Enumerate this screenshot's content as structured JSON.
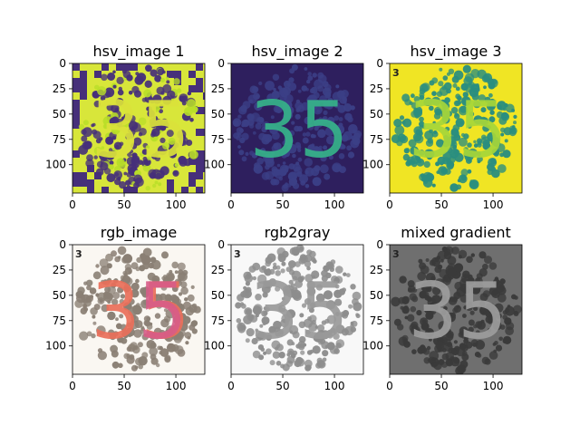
{
  "figure": {
    "rows": 2,
    "cols": 3
  },
  "chart_data": [
    {
      "type": "heatmap",
      "title": "hsv_image 1",
      "colormap": "viridis",
      "xlim": [
        0,
        128
      ],
      "ylim": [
        128,
        0
      ],
      "xticks": [
        0,
        50,
        100
      ],
      "yticks": [
        0,
        25,
        50,
        75,
        100
      ],
      "image": {
        "background": "#d8e63a",
        "dots": "#462f7a",
        "glyph": "35",
        "glyph_color": "#dbe23a",
        "checker_border": true,
        "highlight_dots": "#b9de28"
      }
    },
    {
      "type": "heatmap",
      "title": "hsv_image 2",
      "colormap": "viridis",
      "xlim": [
        0,
        128
      ],
      "ylim": [
        128,
        0
      ],
      "xticks": [
        0,
        50,
        100
      ],
      "yticks": [
        0,
        25,
        50,
        75,
        100
      ],
      "image": {
        "background": "#2e1f5e",
        "dots": "#3b3f86",
        "glyph": "35",
        "glyph_color": "#36b38a"
      }
    },
    {
      "type": "heatmap",
      "title": "hsv_image 3",
      "colormap": "viridis",
      "xlim": [
        0,
        128
      ],
      "ylim": [
        128,
        0
      ],
      "xticks": [
        0,
        50,
        100
      ],
      "yticks": [
        0,
        25,
        50,
        75,
        100
      ],
      "image": {
        "background": "#f0e524",
        "dots": "#2a8e7f",
        "glyph": "35",
        "glyph_color": "#a6d63a",
        "corner_text": "3"
      }
    },
    {
      "type": "heatmap",
      "title": "rgb_image",
      "colormap": "rgb",
      "xlim": [
        0,
        128
      ],
      "ylim": [
        128,
        0
      ],
      "xticks": [
        0,
        50,
        100
      ],
      "yticks": [
        0,
        25,
        50,
        75,
        100
      ],
      "image": {
        "background": "#faf7f2",
        "dots": "#8a7f74",
        "glyph": "35",
        "glyph_color": "#ea6f5a",
        "glyph_color2": "#d85c88",
        "corner_text": "3"
      }
    },
    {
      "type": "heatmap",
      "title": "rgb2gray",
      "colormap": "gray",
      "xlim": [
        0,
        128
      ],
      "ylim": [
        128,
        0
      ],
      "xticks": [
        0,
        50,
        100
      ],
      "yticks": [
        0,
        25,
        50,
        75,
        100
      ],
      "image": {
        "background": "#f8f8f8",
        "dots": "#8d8d8d",
        "glyph": "35",
        "glyph_color": "#9a9a9a",
        "corner_text": "3"
      }
    },
    {
      "type": "heatmap",
      "title": "mixed gradient",
      "colormap": "gray",
      "xlim": [
        0,
        128
      ],
      "ylim": [
        128,
        0
      ],
      "xticks": [
        0,
        50,
        100
      ],
      "yticks": [
        0,
        25,
        50,
        75,
        100
      ],
      "image": {
        "background": "#6f6f6f",
        "dots": "#3a3a3a",
        "glyph": "35",
        "glyph_color": "#9d9d9d",
        "corner_text": "3"
      }
    }
  ]
}
